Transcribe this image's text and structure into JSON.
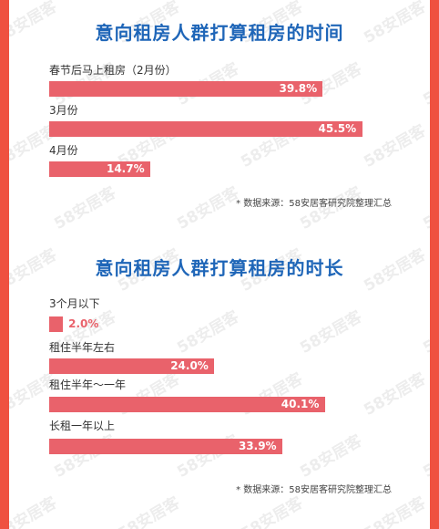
{
  "colors": {
    "frame": "#ef5140",
    "title": "#1f66b8",
    "bar": "#e9626b"
  },
  "watermark": "58安居客",
  "charts": [
    {
      "title": "意向租房人群打算租房的时间",
      "source": "* 数据来源：58安居客研究院整理汇总"
    },
    {
      "title": "意向租房人群打算租房的时长",
      "source": "* 数据来源：58安居客研究院整理汇总"
    }
  ],
  "chart_data": [
    {
      "type": "bar",
      "title": "意向租房人群打算租房的时间",
      "categories": [
        "春节后马上租房（2月份）",
        "3月份",
        "4月份"
      ],
      "values": [
        39.8,
        45.5,
        14.7
      ],
      "value_labels": [
        "39.8%",
        "45.5%",
        "14.7%"
      ],
      "orientation": "horizontal",
      "unit": "%"
    },
    {
      "type": "bar",
      "title": "意向租房人群打算租房的时长",
      "categories": [
        "3个月以下",
        "租住半年左右",
        "租住半年～一年",
        "长租一年以上"
      ],
      "values": [
        2.0,
        24.0,
        40.1,
        33.9
      ],
      "value_labels": [
        "2.0%",
        "24.0%",
        "40.1%",
        "33.9%"
      ],
      "orientation": "horizontal",
      "unit": "%"
    }
  ]
}
